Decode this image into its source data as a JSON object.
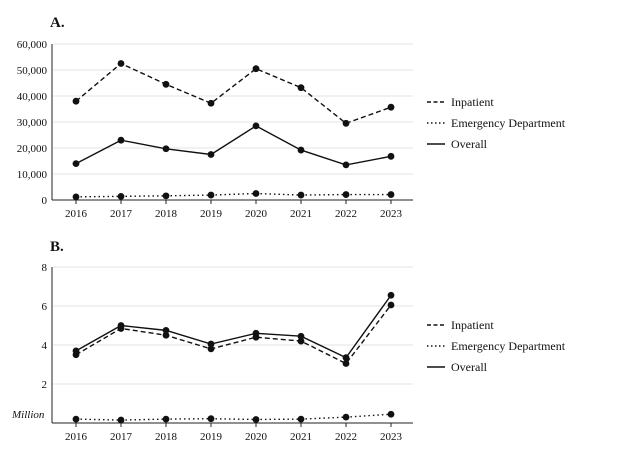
{
  "chart_data": [
    {
      "type": "line",
      "panel_label": "A.",
      "x": [
        "2016",
        "2017",
        "2018",
        "2019",
        "2020",
        "2021",
        "2022",
        "2023"
      ],
      "ylim": [
        0,
        60000
      ],
      "yticks": [
        "0",
        "10,000",
        "20,000",
        "30,000",
        "40,000",
        "50,000",
        "60,000"
      ],
      "ytick_values": [
        0,
        10000,
        20000,
        30000,
        40000,
        50000,
        60000
      ],
      "grid": true,
      "legend_position": "right",
      "series": [
        {
          "name": "Inpatient",
          "style": "dashed",
          "values": [
            38000,
            52500,
            44500,
            37200,
            50500,
            43200,
            29500,
            35700
          ]
        },
        {
          "name": "Emergency Department",
          "style": "dotted",
          "values": [
            1200,
            1400,
            1600,
            1900,
            2500,
            1900,
            2100,
            2100
          ]
        },
        {
          "name": "Overall",
          "style": "solid",
          "values": [
            14000,
            23000,
            19700,
            17500,
            28500,
            19200,
            13500,
            16800
          ]
        }
      ]
    },
    {
      "type": "line",
      "panel_label": "B.",
      "x": [
        "2016",
        "2017",
        "2018",
        "2019",
        "2020",
        "2021",
        "2022",
        "2023"
      ],
      "ylim": [
        0,
        8
      ],
      "yticks": [
        "",
        "2",
        "4",
        "6",
        "8"
      ],
      "ytick_values": [
        0,
        2,
        4,
        6,
        8
      ],
      "unit_label": "Million",
      "grid": true,
      "legend_position": "right",
      "series": [
        {
          "name": "Inpatient",
          "style": "dashed",
          "values": [
            3.5,
            4.85,
            4.5,
            3.8,
            4.4,
            4.2,
            3.05,
            6.05
          ]
        },
        {
          "name": "Emergency Department",
          "style": "dotted",
          "values": [
            0.2,
            0.15,
            0.2,
            0.22,
            0.18,
            0.2,
            0.3,
            0.45
          ]
        },
        {
          "name": "Overall",
          "style": "solid",
          "values": [
            3.7,
            5.0,
            4.75,
            4.05,
            4.6,
            4.45,
            3.35,
            6.55
          ]
        }
      ]
    }
  ]
}
